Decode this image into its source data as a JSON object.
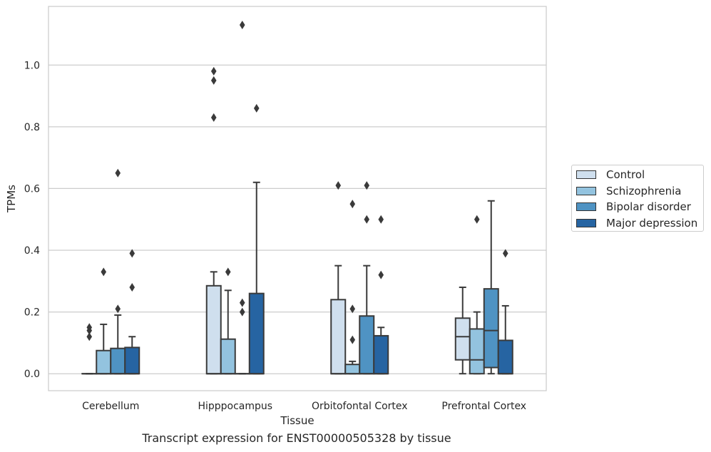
{
  "chart_data": {
    "type": "box",
    "caption": "Transcript expression for ENST00000505328 by tissue",
    "xlabel": "Tissue",
    "ylabel": "TPMs",
    "ylim": [
      -0.055,
      1.19
    ],
    "yticks": [
      0.0,
      0.2,
      0.4,
      0.6,
      0.8,
      1.0
    ],
    "ytick_labels": [
      "0.0",
      "0.2",
      "0.4",
      "0.6",
      "0.8",
      "1.0"
    ],
    "grid": "horizontal",
    "legend_position": "right",
    "categories": [
      "Cerebellum",
      "Hipppocampus",
      "Orbitofontal Cortex",
      "Prefrontal Cortex"
    ],
    "series": [
      {
        "name": "Control",
        "color": "#cfdfee",
        "boxes": [
          {
            "q1": 0.0,
            "median": 0.0,
            "q3": 0.0,
            "whislo": 0.0,
            "whishi": 0.0,
            "fliers": [
              0.12,
              0.14,
              0.15
            ]
          },
          {
            "q1": 0.0,
            "median": 0.0,
            "q3": 0.285,
            "whislo": 0.0,
            "whishi": 0.33,
            "fliers": [
              0.83,
              0.95,
              0.98
            ]
          },
          {
            "q1": 0.0,
            "median": 0.0,
            "q3": 0.24,
            "whislo": 0.0,
            "whishi": 0.35,
            "fliers": [
              0.61
            ]
          },
          {
            "q1": 0.045,
            "median": 0.12,
            "q3": 0.18,
            "whislo": 0.0,
            "whishi": 0.28,
            "fliers": []
          }
        ]
      },
      {
        "name": "Schizophrenia",
        "color": "#93c3df",
        "boxes": [
          {
            "q1": 0.0,
            "median": 0.0,
            "q3": 0.075,
            "whislo": 0.0,
            "whishi": 0.16,
            "fliers": [
              0.33
            ]
          },
          {
            "q1": 0.0,
            "median": 0.0,
            "q3": 0.112,
            "whislo": 0.0,
            "whishi": 0.27,
            "fliers": [
              0.33
            ]
          },
          {
            "q1": 0.0,
            "median": 0.0,
            "q3": 0.03,
            "whislo": 0.0,
            "whishi": 0.04,
            "fliers": [
              0.11,
              0.21,
              0.55
            ]
          },
          {
            "q1": 0.0,
            "median": 0.045,
            "q3": 0.145,
            "whislo": 0.0,
            "whishi": 0.2,
            "fliers": [
              0.5
            ]
          }
        ]
      },
      {
        "name": "Bipolar disorder",
        "color": "#4f93c3",
        "boxes": [
          {
            "q1": 0.0,
            "median": 0.0,
            "q3": 0.082,
            "whislo": 0.0,
            "whishi": 0.19,
            "fliers": [
              0.21,
              0.65
            ]
          },
          {
            "q1": 0.0,
            "median": 0.0,
            "q3": 0.0,
            "whislo": 0.0,
            "whishi": 0.0,
            "fliers": [
              0.2,
              0.23,
              1.13
            ]
          },
          {
            "q1": 0.0,
            "median": 0.0,
            "q3": 0.187,
            "whislo": 0.0,
            "whishi": 0.35,
            "fliers": [
              0.5,
              0.61
            ]
          },
          {
            "q1": 0.02,
            "median": 0.14,
            "q3": 0.275,
            "whislo": 0.0,
            "whishi": 0.56,
            "fliers": []
          }
        ]
      },
      {
        "name": "Major depression",
        "color": "#2664a2",
        "boxes": [
          {
            "q1": 0.0,
            "median": 0.0,
            "q3": 0.085,
            "whislo": 0.0,
            "whishi": 0.12,
            "fliers": [
              0.28,
              0.39
            ]
          },
          {
            "q1": 0.0,
            "median": 0.0,
            "q3": 0.26,
            "whislo": 0.0,
            "whishi": 0.62,
            "fliers": [
              0.86
            ]
          },
          {
            "q1": 0.0,
            "median": 0.0,
            "q3": 0.123,
            "whislo": 0.0,
            "whishi": 0.15,
            "fliers": [
              0.32,
              0.5
            ]
          },
          {
            "q1": 0.0,
            "median": 0.0,
            "q3": 0.108,
            "whislo": 0.0,
            "whishi": 0.22,
            "fliers": [
              0.39
            ]
          }
        ]
      }
    ]
  }
}
